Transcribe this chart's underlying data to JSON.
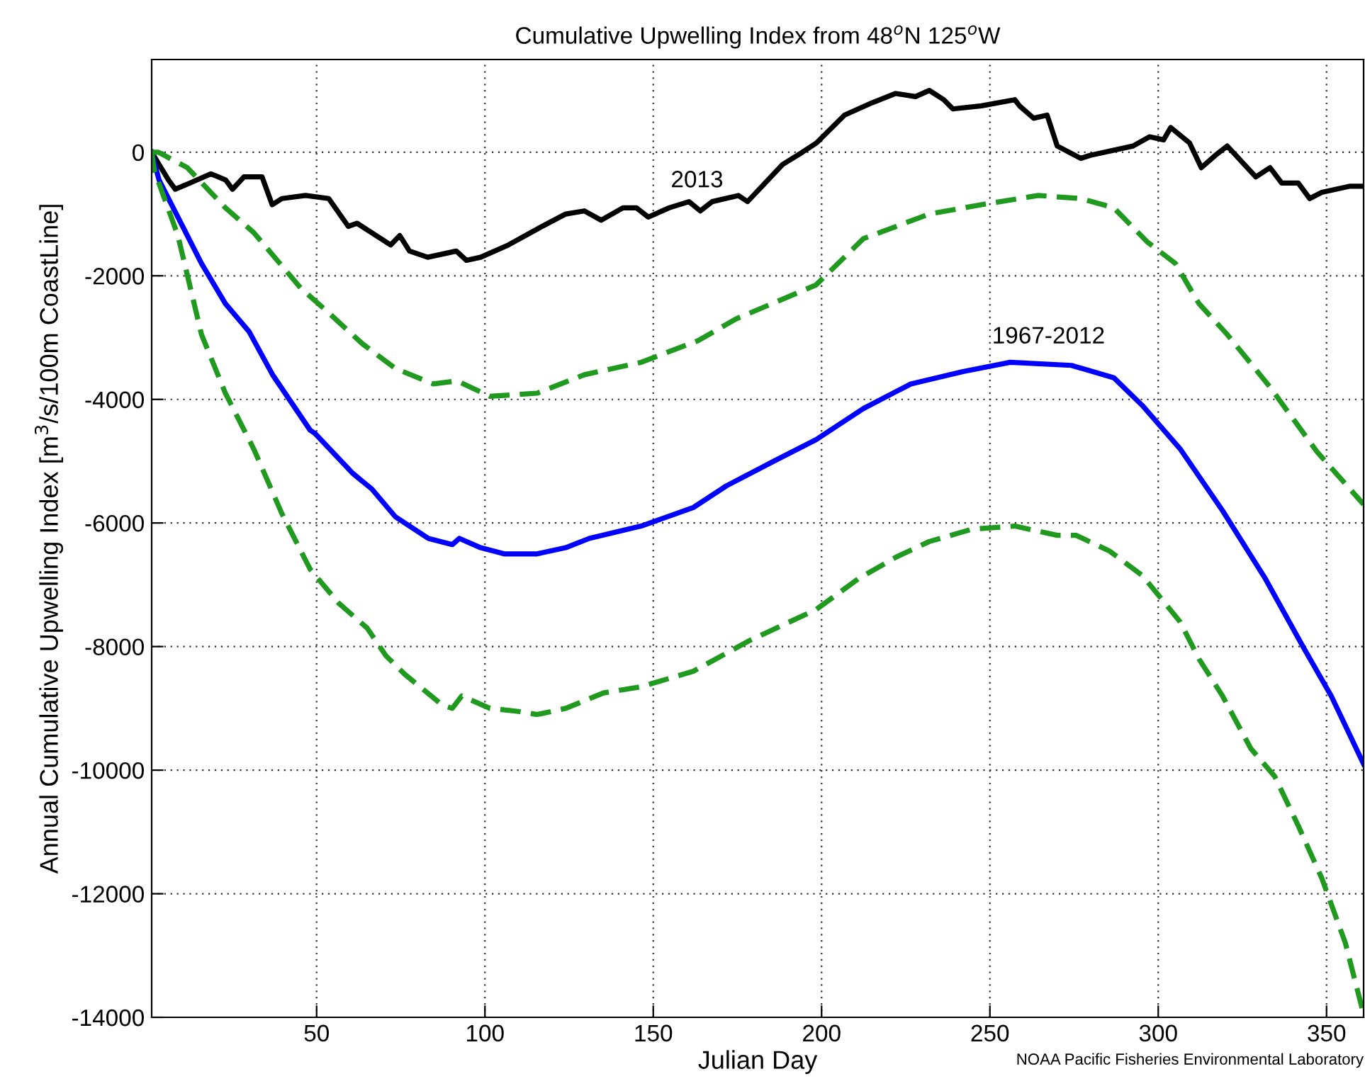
{
  "chart_data": {
    "type": "line",
    "title": "Cumulative Upwelling Index from 48$^{o}$N 125$^{o}$W",
    "xlabel": "Julian Day",
    "ylabel": "Annual Cumulative Upwelling Index [m$^{3}$/s/100m CoastLine]",
    "xlim": [
      1,
      361
    ],
    "ylim": [
      -14000,
      1500
    ],
    "xticks": [
      50,
      100,
      150,
      200,
      250,
      300,
      350
    ],
    "yticks": [
      -14000,
      -12000,
      -10000,
      -8000,
      -6000,
      -4000,
      -2000,
      0
    ],
    "grid": true,
    "series": [
      {
        "name": "2013",
        "color": "#000000",
        "line_style": "solid",
        "x": [
          1,
          6,
          8,
          12.3,
          18.6,
          23,
          25,
          28.4,
          33.8,
          36.8,
          39.7,
          46.7,
          53.6,
          59.4,
          62,
          72,
          74.7,
          77.6,
          83,
          91.5,
          94.5,
          98.7,
          107,
          117,
          124,
          129.5,
          134.5,
          141,
          145,
          148.5,
          154.7,
          160.6,
          164,
          167.5,
          175.3,
          178,
          188.4,
          194.3,
          198.5,
          206.8,
          215,
          222,
          227.9,
          232,
          236.3,
          239,
          247.5,
          257.4,
          258.8,
          263,
          267,
          270,
          277,
          279.8,
          292.5,
          297.4,
          301.6,
          303.7,
          309.3,
          312.8,
          317,
          320.5,
          329,
          333.2,
          336.7,
          341.6,
          345,
          348.6,
          357,
          361
        ],
        "values": [
          0,
          -450,
          -600,
          -500,
          -350,
          -450,
          -600,
          -400,
          -400,
          -850,
          -750,
          -700,
          -750,
          -1200,
          -1150,
          -1500,
          -1350,
          -1600,
          -1700,
          -1600,
          -1750,
          -1700,
          -1500,
          -1200,
          -1000,
          -950,
          -1100,
          -900,
          -900,
          -1050,
          -900,
          -800,
          -950,
          -800,
          -700,
          -800,
          -200,
          0,
          150,
          600,
          800,
          950,
          900,
          1000,
          850,
          700,
          750,
          850,
          750,
          550,
          600,
          100,
          -100,
          -50,
          100,
          250,
          200,
          400,
          150,
          -250,
          -50,
          100,
          -400,
          -250,
          -500,
          -500,
          -750,
          -650,
          -550,
          -550
        ]
      },
      {
        "name": "1967-2012",
        "color": "#0000ff",
        "line_style": "solid",
        "x": [
          1,
          3.2,
          10.2,
          15.8,
          22.9,
          29.9,
          36.9,
          42.5,
          48.1,
          49.5,
          60.8,
          66.4,
          73.4,
          83.2,
          90.3,
          92.4,
          98.7,
          105.7,
          115.5,
          124,
          131,
          146.4,
          161.9,
          171.7,
          185.8,
          198.4,
          212.4,
          226.5,
          242,
          256,
          274.2,
          286.8,
          295.3,
          306.5,
          319.1,
          331.8,
          343,
          351.4,
          361
        ],
        "values": [
          0,
          -450,
          -1200,
          -1800,
          -2450,
          -2900,
          -3600,
          -4050,
          -4500,
          -4550,
          -5200,
          -5450,
          -5900,
          -6250,
          -6350,
          -6250,
          -6400,
          -6500,
          -6500,
          -6400,
          -6250,
          -6050,
          -5750,
          -5400,
          -5000,
          -4650,
          -4150,
          -3750,
          -3550,
          -3400,
          -3450,
          -3650,
          -4100,
          -4800,
          -5800,
          -6900,
          -8000,
          -8800,
          -9900
        ]
      },
      {
        "color": "#1f9a1f",
        "line_style": "dashed",
        "x": [
          1,
          3,
          11.6,
          22.9,
          31.3,
          38.3,
          45.3,
          53.6,
          63.6,
          73.4,
          84.7,
          91.7,
          101.5,
          115.5,
          129.6,
          146.4,
          163.3,
          174.5,
          198.3,
          212.4,
          232,
          247.4,
          264.4,
          277,
          286.8,
          296.7,
          305.1,
          312.1,
          320.5,
          333.2,
          347.2,
          361
        ],
        "values": [
          0,
          0,
          -250,
          -900,
          -1300,
          -1750,
          -2200,
          -2600,
          -3100,
          -3500,
          -3750,
          -3700,
          -3950,
          -3900,
          -3600,
          -3400,
          -3050,
          -2700,
          -2150,
          -1400,
          -1000,
          -850,
          -700,
          -750,
          -900,
          -1450,
          -1800,
          -2450,
          -2950,
          -3800,
          -4850,
          -5700
        ]
      },
      {
        "color": "#1f9a1f",
        "line_style": "dashed",
        "x": [
          1,
          1.8,
          8.8,
          15.8,
          22.9,
          31.3,
          39.7,
          48.1,
          56.6,
          65,
          70.6,
          76.2,
          87.4,
          90.3,
          93.1,
          101.5,
          110,
          115.5,
          124,
          135.2,
          146.4,
          161.9,
          178.7,
          198.4,
          211,
          222.2,
          232,
          244.7,
          257.4,
          270,
          275.6,
          285.4,
          295.3,
          306.5,
          312.1,
          319.1,
          327.5,
          334.6,
          341.6,
          348.6,
          355.6,
          361
        ],
        "values": [
          0,
          -300,
          -1350,
          -2950,
          -3900,
          -4800,
          -5850,
          -6750,
          -7300,
          -7700,
          -8150,
          -8450,
          -8950,
          -9000,
          -8800,
          -9000,
          -9050,
          -9100,
          -9000,
          -8750,
          -8650,
          -8400,
          -7900,
          -7400,
          -6900,
          -6550,
          -6300,
          -6100,
          -6050,
          -6200,
          -6200,
          -6450,
          -6850,
          -7600,
          -8200,
          -8800,
          -9650,
          -10100,
          -10900,
          -11750,
          -12800,
          -13950
        ]
      }
    ],
    "annotations": [
      "NOAA Pacific Fisheries Environmental Laboratory"
    ]
  }
}
